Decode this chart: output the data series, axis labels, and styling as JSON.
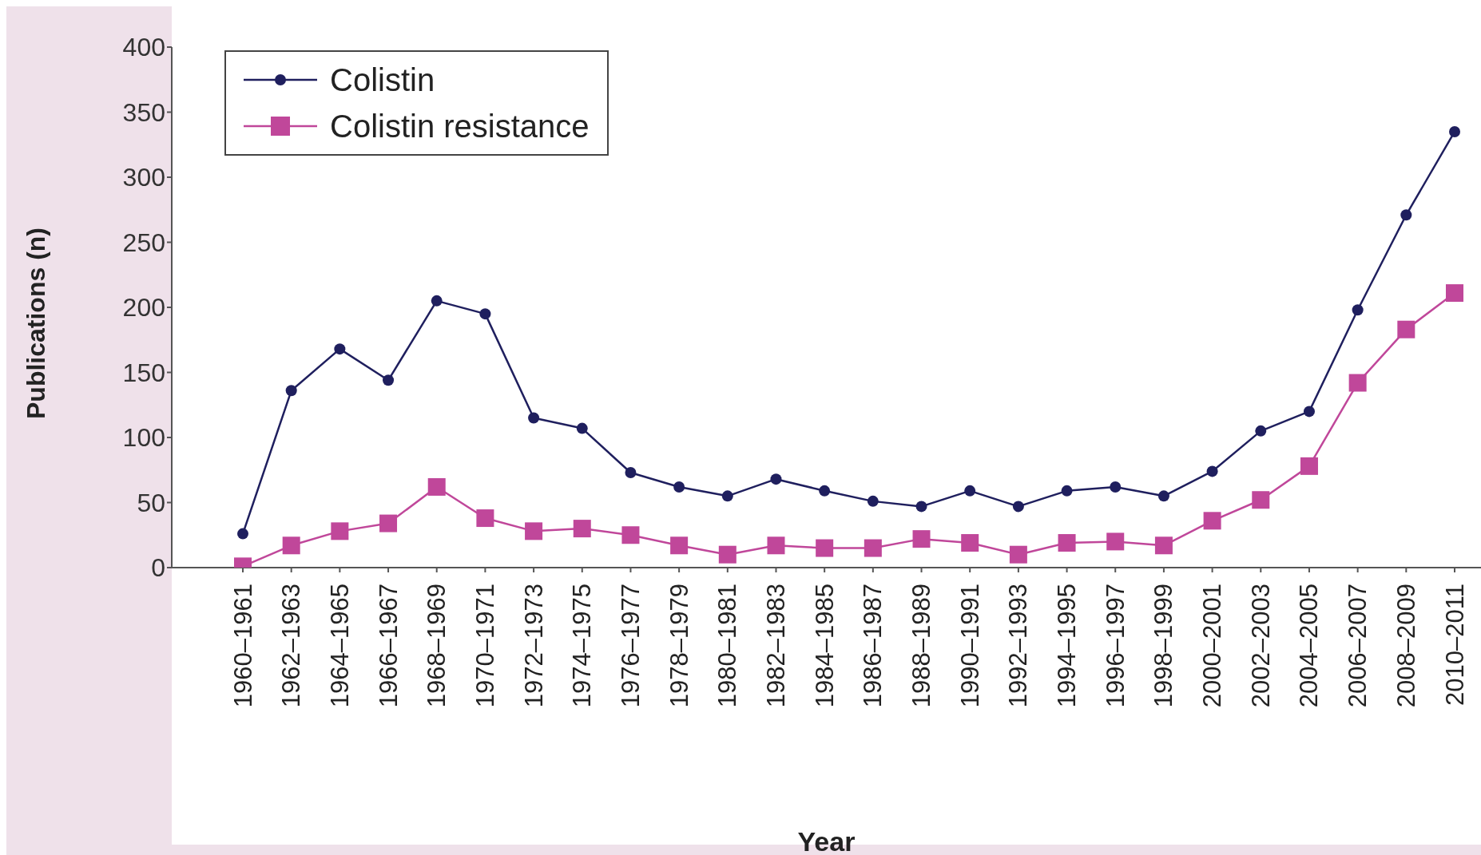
{
  "chart_data": {
    "type": "line",
    "xlabel": "Year",
    "ylabel": "Publications (n)",
    "categories": [
      "1960–1961",
      "1962–1963",
      "1964–1965",
      "1966–1967",
      "1968–1969",
      "1970–1971",
      "1972–1973",
      "1974–1975",
      "1976–1977",
      "1978–1979",
      "1980–1981",
      "1982–1983",
      "1984–1985",
      "1986–1987",
      "1988–1989",
      "1990–1991",
      "1992–1993",
      "1994–1995",
      "1996–1997",
      "1998–1999",
      "2000–2001",
      "2002–2003",
      "2004–2005",
      "2006–2007",
      "2008–2009",
      "2010–2011"
    ],
    "series": [
      {
        "name": "Colistin",
        "color": "#1f1f5e",
        "marker": "circle",
        "values": [
          26,
          136,
          168,
          144,
          205,
          195,
          115,
          107,
          73,
          62,
          55,
          68,
          59,
          51,
          47,
          59,
          47,
          59,
          62,
          55,
          74,
          105,
          120,
          198,
          271,
          335
        ]
      },
      {
        "name": "Colistin resistance",
        "color": "#c0479a",
        "marker": "square",
        "values": [
          1,
          17,
          28,
          34,
          62,
          38,
          28,
          30,
          25,
          17,
          10,
          17,
          15,
          15,
          22,
          19,
          10,
          19,
          20,
          17,
          36,
          52,
          78,
          142,
          183,
          211
        ]
      }
    ],
    "ylim": [
      0,
      400
    ],
    "yticks": [
      0,
      50,
      100,
      150,
      200,
      250,
      300,
      350,
      400
    ],
    "grid": false,
    "legend": "top left",
    "line_style": "solid"
  }
}
